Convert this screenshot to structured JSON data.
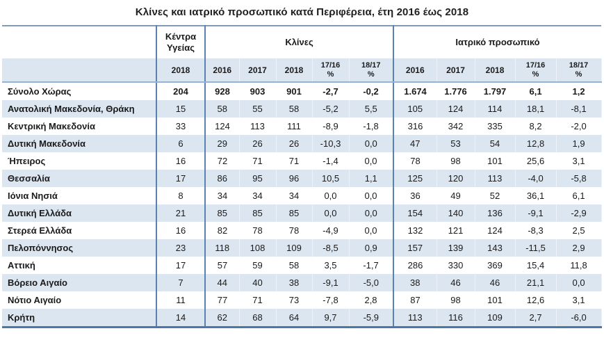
{
  "title": "Κλίνες και ιατρικό προσωπικό κατά Περιφέρεια, έτη 2016 έως 2018",
  "colors": {
    "row_shade": "#dce6f1",
    "group_separator": "#5a81af",
    "table_top_border": "#7e9cb8",
    "table_bottom_border": "#4a76a8",
    "header_underline": "#95b3d7"
  },
  "table": {
    "group_headers": {
      "region": "",
      "health_centers": "Κέντρα Υγείας",
      "beds": "Κλίνες",
      "staff": "Ιατρικό προσωπικό"
    },
    "sub_headers": {
      "hc_year": "2018",
      "beds_2016": "2016",
      "beds_2017": "2017",
      "beds_2018": "2018",
      "beds_pct_1716": "17/16\n%",
      "beds_pct_1817": "18/17\n%",
      "staff_2016": "2016",
      "staff_2017": "2017",
      "staff_2018": "2018",
      "staff_pct_1716": "17/16\n%",
      "staff_pct_1817": "18/17\n%"
    },
    "rows": [
      {
        "region": "Σύνολο Χώρας",
        "hc": "204",
        "beds": [
          "928",
          "903",
          "901",
          "-2,7",
          "-0,2"
        ],
        "staff": [
          "1.674",
          "1.776",
          "1.797",
          "6,1",
          "1,2"
        ]
      },
      {
        "region": "Ανατολική Μακεδονία, Θράκη",
        "hc": "15",
        "beds": [
          "58",
          "55",
          "58",
          "-5,2",
          "5,5"
        ],
        "staff": [
          "105",
          "124",
          "114",
          "18,1",
          "-8,1"
        ]
      },
      {
        "region": "Κεντρική Μακεδονία",
        "hc": "33",
        "beds": [
          "124",
          "113",
          "111",
          "-8,9",
          "-1,8"
        ],
        "staff": [
          "316",
          "342",
          "335",
          "8,2",
          "-2,0"
        ]
      },
      {
        "region": "Δυτική Μακεδονία",
        "hc": "6",
        "beds": [
          "29",
          "26",
          "26",
          "-10,3",
          "0,0"
        ],
        "staff": [
          "47",
          "53",
          "54",
          "12,8",
          "1,9"
        ]
      },
      {
        "region": "Ήπειρος",
        "hc": "16",
        "beds": [
          "72",
          "71",
          "71",
          "-1,4",
          "0,0"
        ],
        "staff": [
          "78",
          "98",
          "101",
          "25,6",
          "3,1"
        ]
      },
      {
        "region": "Θεσσαλία",
        "hc": "17",
        "beds": [
          "86",
          "95",
          "96",
          "10,5",
          "1,1"
        ],
        "staff": [
          "125",
          "120",
          "113",
          "-4,0",
          "-5,8"
        ]
      },
      {
        "region": "Ιόνια Νησιά",
        "hc": "8",
        "beds": [
          "34",
          "34",
          "34",
          "0,0",
          "0,0"
        ],
        "staff": [
          "36",
          "49",
          "52",
          "36,1",
          "6,1"
        ]
      },
      {
        "region": "Δυτική Ελλάδα",
        "hc": "21",
        "beds": [
          "85",
          "85",
          "85",
          "0,0",
          "0,0"
        ],
        "staff": [
          "154",
          "140",
          "136",
          "-9,1",
          "-2,9"
        ]
      },
      {
        "region": "Στερεά Ελλάδα",
        "hc": "16",
        "beds": [
          "82",
          "78",
          "78",
          "-4,9",
          "0,0"
        ],
        "staff": [
          "132",
          "121",
          "124",
          "-8,3",
          "2,5"
        ]
      },
      {
        "region": "Πελοπόννησος",
        "hc": "23",
        "beds": [
          "118",
          "108",
          "109",
          "-8,5",
          "0,9"
        ],
        "staff": [
          "157",
          "139",
          "143",
          "-11,5",
          "2,9"
        ]
      },
      {
        "region": "Αττική",
        "hc": "17",
        "beds": [
          "57",
          "59",
          "58",
          "3,5",
          "-1,7"
        ],
        "staff": [
          "286",
          "330",
          "369",
          "15,4",
          "11,8"
        ]
      },
      {
        "region": "Βόρειο Αιγαίο",
        "hc": "7",
        "beds": [
          "44",
          "40",
          "38",
          "-9,1",
          "-5,0"
        ],
        "staff": [
          "38",
          "46",
          "46",
          "21,1",
          "0,0"
        ]
      },
      {
        "region": "Νότιο Αιγαίο",
        "hc": "11",
        "beds": [
          "77",
          "71",
          "73",
          "-7,8",
          "2,8"
        ],
        "staff": [
          "87",
          "98",
          "101",
          "12,6",
          "3,1"
        ]
      },
      {
        "region": "Κρήτη",
        "hc": "14",
        "beds": [
          "62",
          "68",
          "64",
          "9,7",
          "-5,9"
        ],
        "staff": [
          "113",
          "116",
          "109",
          "2,7",
          "-6,0"
        ]
      }
    ]
  }
}
